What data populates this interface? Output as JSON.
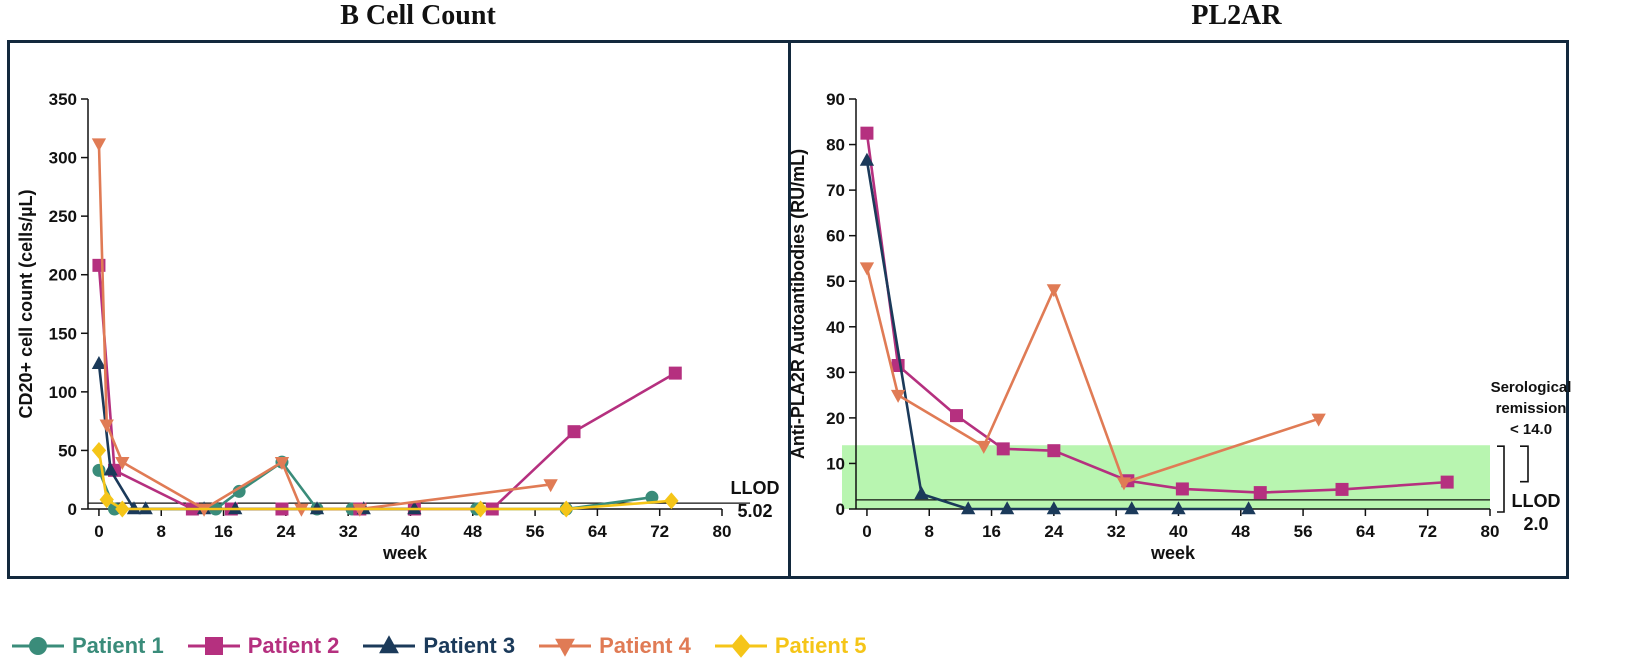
{
  "chart_data": [
    {
      "type": "line",
      "title": "B Cell Count",
      "xlabel": "week",
      "ylabel": "CD20+ cell count (cells/µL)",
      "xlim": [
        -5,
        80
      ],
      "ylim": [
        0,
        350
      ],
      "xticks": [
        0,
        8,
        16,
        24,
        32,
        40,
        48,
        56,
        64,
        72,
        80
      ],
      "yticks": [
        0,
        50,
        100,
        150,
        200,
        250,
        300,
        350
      ],
      "reference_line": {
        "label": "LLOD",
        "value_label": "5.02",
        "y": 5.02
      },
      "series": [
        {
          "name": "Patient 1",
          "x": [
            0,
            2,
            15,
            18,
            23.5,
            28,
            32.5,
            40.5,
            48.5,
            60,
            71
          ],
          "y": [
            33,
            0,
            0,
            15,
            40,
            0,
            0,
            0,
            0,
            0,
            10
          ]
        },
        {
          "name": "Patient 2",
          "x": [
            0,
            2,
            12,
            17,
            23.5,
            33.5,
            40.5,
            50.5,
            61,
            74
          ],
          "y": [
            208,
            33,
            0,
            0,
            0,
            0,
            0,
            0,
            66,
            116
          ]
        },
        {
          "name": "Patient 3",
          "x": [
            0,
            1.5,
            4.5,
            6,
            13.5,
            17.5,
            28,
            34,
            40.5
          ],
          "y": [
            124,
            33,
            0,
            0,
            0,
            0,
            0,
            0,
            0
          ]
        },
        {
          "name": "Patient 4",
          "x": [
            0,
            1,
            3,
            13.5,
            23.5,
            26,
            33.5,
            58
          ],
          "y": [
            312,
            72,
            40,
            0,
            40,
            0,
            0,
            21
          ]
        },
        {
          "name": "Patient 5",
          "x": [
            0,
            1,
            3,
            49,
            60,
            73.5
          ],
          "y": [
            50,
            8,
            0,
            0,
            0,
            7
          ]
        }
      ]
    },
    {
      "type": "line",
      "title": "PL2AR",
      "xlabel": "week",
      "ylabel": "Anti-PLA2R Autoantibodies (RU/mL)",
      "xlim": [
        -5,
        80
      ],
      "ylim": [
        0,
        90
      ],
      "xticks": [
        0,
        8,
        16,
        24,
        32,
        40,
        48,
        56,
        64,
        72,
        80
      ],
      "yticks": [
        0,
        10,
        20,
        30,
        40,
        50,
        60,
        70,
        80,
        90
      ],
      "shaded_region": {
        "y_from": 0,
        "y_to": 14,
        "color": "#b8f5b0"
      },
      "reference_line": {
        "label": "LLOD",
        "value_label": "2.0",
        "y": 2.0
      },
      "annotation": {
        "line1": "Serological",
        "line2": "remission",
        "line3": "< 14.0"
      },
      "series": [
        {
          "name": "Patient 2",
          "x": [
            0,
            4,
            11.5,
            17.5,
            24,
            33.5,
            40.5,
            50.5,
            61,
            74.5
          ],
          "y": [
            82.5,
            31.5,
            20.5,
            13.2,
            12.8,
            6.2,
            4.4,
            3.6,
            4.3,
            5.9
          ]
        },
        {
          "name": "Patient 3",
          "x": [
            0,
            7,
            13,
            18,
            24,
            34,
            40,
            49
          ],
          "y": [
            76.5,
            3.3,
            0,
            0,
            0,
            0,
            0,
            0
          ]
        },
        {
          "name": "Patient 4",
          "x": [
            0,
            4,
            15,
            24,
            33,
            58
          ],
          "y": [
            53,
            25,
            13.8,
            48.2,
            5.8,
            19.8
          ]
        }
      ]
    }
  ],
  "legend": [
    {
      "name": "Patient 1",
      "color": "#3a8c7a",
      "marker": "circle"
    },
    {
      "name": "Patient 2",
      "color": "#b5307f",
      "marker": "square"
    },
    {
      "name": "Patient 3",
      "color": "#1b3a5a",
      "marker": "triangle-up"
    },
    {
      "name": "Patient 4",
      "color": "#e07b55",
      "marker": "triangle-down"
    },
    {
      "name": "Patient 5",
      "color": "#f5c518",
      "marker": "diamond"
    }
  ]
}
